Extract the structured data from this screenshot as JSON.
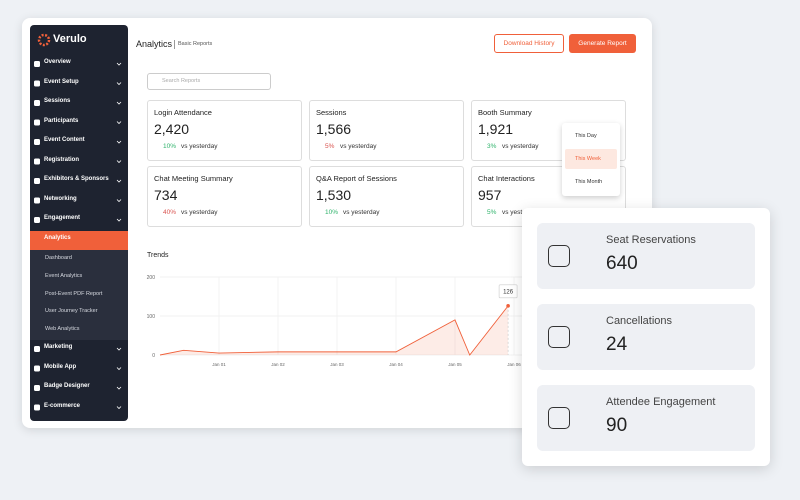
{
  "brand": "Verulo",
  "sidebar": {
    "items_top": [
      "Overview",
      "Event Setup",
      "Sessions",
      "Participants",
      "Event Content",
      "Registration",
      "Exhibitors & Sponsors",
      "Networking",
      "Engagement",
      "Analytics"
    ],
    "submenu": [
      "Dashboard",
      "Event Analytics",
      "Post-Event PDF Report",
      "User Journey Tracker",
      "Web Analytics"
    ],
    "items_bottom": [
      "Marketing",
      "Mobile App",
      "Badge Designer",
      "E-commerce"
    ]
  },
  "header": {
    "title": "Analytics",
    "breadcrumb": "Basic Reports",
    "buttons": [
      "Download History",
      "Generate Report"
    ]
  },
  "search_placeholder": "Search Reports",
  "cards": [
    {
      "title": "Login Attendance",
      "value": "2,420",
      "change": "10%",
      "compare": "vs yesterday",
      "trend": "up"
    },
    {
      "title": "Sessions",
      "value": "1,566",
      "change": "5%",
      "compare": "vs yesterday",
      "trend": "down"
    },
    {
      "title": "Booth Summary",
      "value": "1,921",
      "change": "3%",
      "compare": "vs yesterday",
      "trend": "up"
    },
    {
      "title": "Chat Meeting Summary",
      "value": "734",
      "change": "40%",
      "compare": "vs yesterday",
      "trend": "down"
    },
    {
      "title": "Q&A Report of Sessions",
      "value": "1,530",
      "change": "10%",
      "compare": "vs yesterday",
      "trend": "up"
    },
    {
      "title": "Chat Interactions",
      "value": "957",
      "change": "5%",
      "compare": "vs yesterday",
      "trend": "up"
    }
  ],
  "dropdown": {
    "options": [
      "This Day",
      "This Week",
      "This Month"
    ],
    "selected": 1
  },
  "trends": {
    "type": "area",
    "title": "Trends",
    "color": "#f0603a",
    "x": [
      0,
      0.4,
      1,
      2,
      4,
      5,
      5.25,
      5.9
    ],
    "values": [
      0,
      12,
      5,
      8,
      8,
      90,
      0,
      126
    ],
    "xlim": [
      0,
      7
    ],
    "ylim": [
      0,
      200
    ],
    "yticks": [
      0,
      100,
      200
    ],
    "xticks": [
      {
        "value": 1,
        "label": "Jan 01"
      },
      {
        "value": 2,
        "label": "Jan 02"
      },
      {
        "value": 3,
        "label": "Jan 03"
      },
      {
        "value": 4,
        "label": "Jan 04"
      },
      {
        "value": 5,
        "label": "Jan 05"
      },
      {
        "value": 6,
        "label": "Jan 06"
      }
    ],
    "grid": true
  },
  "stats": [
    {
      "label": "Seat Reservations",
      "value": 640
    },
    {
      "label": "Cancellations",
      "value": 24
    },
    {
      "label": "Attendee Engagement",
      "value": 90
    }
  ]
}
